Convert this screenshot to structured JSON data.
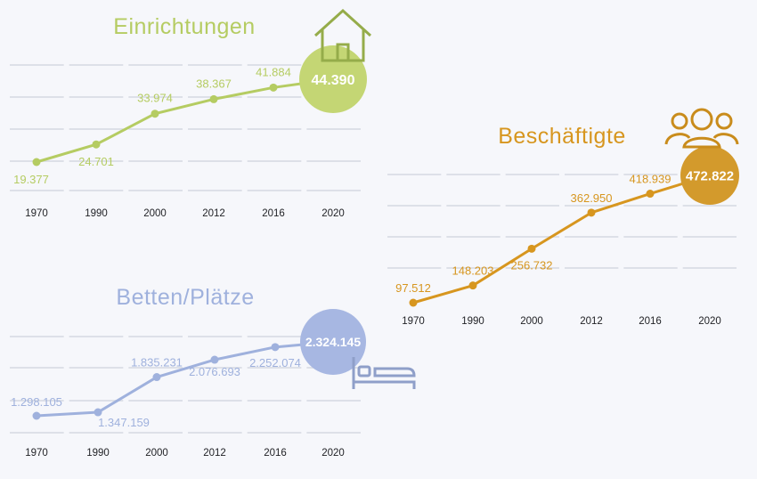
{
  "chart_data": [
    {
      "id": "einrichtungen",
      "type": "line",
      "title": "Einrichtungen",
      "color": "#b5cc62",
      "badge_color": "#c4d674",
      "icon": "house-icon",
      "x": [
        "1970",
        "1990",
        "2000",
        "2012",
        "2016",
        "2020"
      ],
      "values": [
        19377,
        24701,
        33974,
        38367,
        41884,
        44390
      ],
      "labels": [
        "19.377",
        "24.701",
        "33.974",
        "38.367",
        "41.884",
        "44.390"
      ],
      "grid": true
    },
    {
      "id": "beschaeftigte",
      "type": "line",
      "title": "Beschäftigte",
      "color": "#d7961f",
      "badge_color": "#d39a2c",
      "icon": "people-group-icon",
      "x": [
        "1970",
        "1990",
        "2000",
        "2012",
        "2016",
        "2020"
      ],
      "values": [
        97512,
        148203,
        256732,
        362950,
        418939,
        472822
      ],
      "labels": [
        "97.512",
        "148.203",
        "256.732",
        "362.950",
        "418.939",
        "472.822"
      ],
      "grid": true
    },
    {
      "id": "betten",
      "type": "line",
      "title": "Betten/Plätze",
      "color": "#9fb1dd",
      "badge_color": "#a7b7e2",
      "icon": "bed-icon",
      "x": [
        "1970",
        "1990",
        "2000",
        "2012",
        "2016",
        "2020"
      ],
      "values": [
        1298105,
        1347159,
        1835231,
        2076693,
        2252074,
        2324145
      ],
      "labels": [
        "1.298.105",
        "1.347.159",
        "1.835.231",
        "2.076.693",
        "2.252.074",
        "2.324.145"
      ],
      "grid": true
    }
  ]
}
